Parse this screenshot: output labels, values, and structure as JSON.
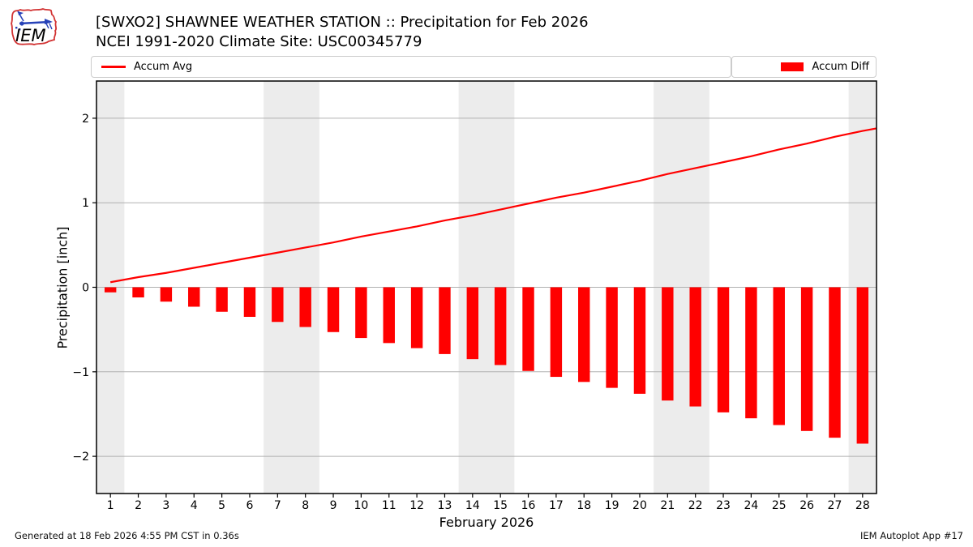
{
  "header": {
    "title": "[SWXO2] SHAWNEE WEATHER STATION :: Precipitation for Feb 2026",
    "subtitle": "NCEI 1991-2020 Climate Site: USC00345779",
    "logo_text": "IEM"
  },
  "legend": {
    "avg_label": "Accum Avg",
    "diff_label": "Accum Diff"
  },
  "footer": {
    "left": "Generated at 18 Feb 2026 4:55 PM CST in 0.36s",
    "right": "IEM Autoplot App #17"
  },
  "chart_data": {
    "type": "bar",
    "x": [
      1,
      2,
      3,
      4,
      5,
      6,
      7,
      8,
      9,
      10,
      11,
      12,
      13,
      14,
      15,
      16,
      17,
      18,
      19,
      20,
      21,
      22,
      23,
      24,
      25,
      26,
      27,
      28
    ],
    "series": [
      {
        "name": "Accum Avg",
        "type": "line",
        "color": "#ff0000",
        "values": [
          0.06,
          0.12,
          0.17,
          0.23,
          0.29,
          0.35,
          0.41,
          0.47,
          0.53,
          0.6,
          0.66,
          0.72,
          0.79,
          0.85,
          0.92,
          0.99,
          1.06,
          1.12,
          1.19,
          1.26,
          1.34,
          1.41,
          1.48,
          1.55,
          1.63,
          1.7,
          1.78,
          1.85
        ],
        "end_point": [
          28.5,
          1.88
        ]
      },
      {
        "name": "Accum Diff",
        "type": "bar",
        "color": "#ff0000",
        "values": [
          -0.06,
          -0.12,
          -0.17,
          -0.23,
          -0.29,
          -0.35,
          -0.41,
          -0.47,
          -0.53,
          -0.6,
          -0.66,
          -0.72,
          -0.79,
          -0.85,
          -0.92,
          -0.99,
          -1.06,
          -1.12,
          -1.19,
          -1.26,
          -1.34,
          -1.41,
          -1.48,
          -1.55,
          -1.63,
          -1.7,
          -1.78,
          -1.85
        ]
      }
    ],
    "xlabel": "February 2026",
    "ylabel": "Precipitation [inch]",
    "xlim": [
      0.5,
      28.5
    ],
    "ylim": [
      -2.44,
      2.44
    ],
    "xticks": [
      1,
      2,
      3,
      4,
      5,
      6,
      7,
      8,
      9,
      10,
      11,
      12,
      13,
      14,
      15,
      16,
      17,
      18,
      19,
      20,
      21,
      22,
      23,
      24,
      25,
      26,
      27,
      28
    ],
    "yticks": [
      -2,
      -1,
      0,
      1,
      2
    ],
    "ytick_labels": [
      "−2",
      "−1",
      "0",
      "1",
      "2"
    ],
    "grid": true,
    "legend_position": "top",
    "weekend_bands": [
      [
        0.5,
        1.5
      ],
      [
        6.5,
        8.5
      ],
      [
        13.5,
        15.5
      ],
      [
        20.5,
        22.5
      ],
      [
        27.5,
        28.5
      ]
    ],
    "colors": {
      "accent": "#ff0000",
      "band": "#ececec",
      "grid": "#b0b0b0",
      "frame": "#000000"
    }
  }
}
